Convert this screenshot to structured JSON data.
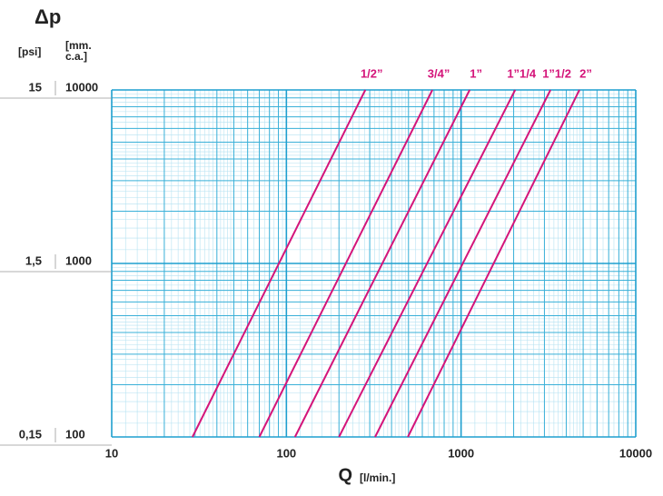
{
  "chart_data": {
    "type": "line",
    "title": "Δp",
    "y_unit": "[psi]",
    "y_unit_2": [
      "[mm.",
      "c.a.]"
    ],
    "x_label": "Q",
    "x_unit": "[l/min.]",
    "log_x": true,
    "log_y": true,
    "grid": true,
    "xlim": [
      10,
      10000
    ],
    "xticks": [
      10,
      100,
      1000,
      10000
    ],
    "ylim": [
      100,
      10000
    ],
    "yticks": [
      100,
      1000,
      10000
    ],
    "y2lim": [
      0.15,
      15
    ],
    "y2ticks": [
      {
        "value": 0.15,
        "label": "0,15"
      },
      {
        "value": 1.5,
        "label": "1,5"
      },
      {
        "value": 15,
        "label": "15"
      }
    ],
    "series": [
      {
        "name": "1/2”",
        "color": "#d4157a",
        "x": [
          29,
          283
        ],
        "values": [
          100,
          10000
        ]
      },
      {
        "name": "3/4”",
        "color": "#d4157a",
        "x": [
          70,
          685
        ],
        "values": [
          100,
          10000
        ]
      },
      {
        "name": "1”",
        "color": "#d4157a",
        "x": [
          112,
          1120
        ],
        "values": [
          100,
          10000
        ]
      },
      {
        "name": "1”1/4",
        "color": "#d4157a",
        "x": [
          200,
          2040
        ],
        "values": [
          100,
          10000
        ]
      },
      {
        "name": "1”1/2",
        "color": "#d4157a",
        "x": [
          322,
          3250
        ],
        "values": [
          100,
          10000
        ]
      },
      {
        "name": "2”",
        "color": "#d4157a",
        "x": [
          496,
          4760
        ],
        "values": [
          100,
          10000
        ]
      }
    ]
  }
}
